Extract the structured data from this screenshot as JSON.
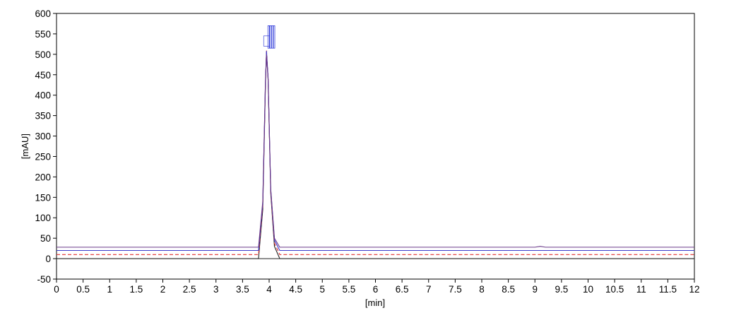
{
  "chart_data": {
    "type": "line",
    "title": "",
    "xlabel": "[min]",
    "ylabel": "[mAU]",
    "xlim": [
      0,
      12
    ],
    "ylim": [
      -50,
      600
    ],
    "x_ticks": [
      "0",
      "0.5",
      "1",
      "1.5",
      "2",
      "2.5",
      "3",
      "3.5",
      "4",
      "4.5",
      "5",
      "5.5",
      "6",
      "6.5",
      "7",
      "7.5",
      "8",
      "8.5",
      "9",
      "9.5",
      "10",
      "10.5",
      "11",
      "11.5",
      "12"
    ],
    "y_ticks": [
      "-50",
      "0",
      "50",
      "100",
      "150",
      "200",
      "250",
      "300",
      "350",
      "400",
      "450",
      "500",
      "550",
      "600"
    ],
    "grid": false,
    "legend": "none",
    "peak": {
      "retention_time": 3.95,
      "apex_mAU": 505,
      "width_min": 0.12
    },
    "series": [
      {
        "offset_mAU": 0,
        "color": "#222222",
        "x": [
          0,
          3.8,
          3.88,
          3.93,
          3.95,
          3.98,
          4.03,
          4.1,
          4.2,
          12
        ],
        "y": [
          0,
          0,
          120,
          420,
          505,
          440,
          160,
          30,
          0,
          0
        ]
      },
      {
        "offset_mAU": 10,
        "color": "#e03030",
        "x": [
          0,
          3.8,
          3.88,
          3.93,
          3.95,
          3.98,
          4.03,
          4.1,
          4.2,
          12
        ],
        "y": [
          10,
          10,
          130,
          425,
          510,
          445,
          165,
          38,
          10,
          10
        ]
      },
      {
        "offset_mAU": 20,
        "color": "#3a3acc",
        "x": [
          0,
          3.8,
          3.88,
          3.93,
          3.95,
          3.98,
          4.03,
          4.1,
          4.2,
          12
        ],
        "y": [
          20,
          20,
          135,
          430,
          508,
          445,
          170,
          45,
          20,
          20
        ]
      },
      {
        "offset_mAU": 28,
        "color": "#6b3a8a",
        "x": [
          0,
          3.8,
          3.88,
          3.93,
          3.95,
          3.98,
          4.03,
          4.1,
          4.2,
          9.0,
          9.1,
          9.2,
          12
        ],
        "y": [
          28,
          28,
          140,
          430,
          500,
          440,
          170,
          50,
          28,
          28,
          30,
          28,
          28
        ]
      }
    ]
  }
}
